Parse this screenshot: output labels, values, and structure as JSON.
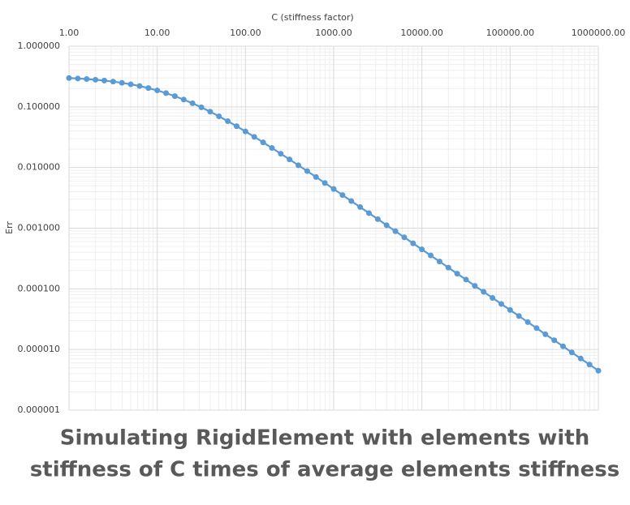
{
  "chart_data": {
    "type": "line",
    "title": [
      "Simulating RigidElement with elements with",
      "stiffness of C times of average elements stiffness"
    ],
    "x_label": "C (stiffness factor)",
    "y_label": "Err",
    "x": [
      1,
      1.259,
      1.585,
      1.995,
      2.512,
      3.162,
      3.981,
      5.012,
      6.31,
      7.943,
      10,
      12.59,
      15.85,
      19.95,
      25.12,
      31.62,
      39.81,
      50.12,
      63.1,
      79.43,
      100,
      125.9,
      158.5,
      199.5,
      251.2,
      316.2,
      398.1,
      501.2,
      631,
      794.3,
      1000,
      1259,
      1585,
      1995,
      2512,
      3162,
      3981,
      5012,
      6310,
      7943,
      10000,
      12589,
      15849,
      19953,
      25119,
      31623,
      39811,
      50119,
      63096,
      79433,
      100000,
      125893,
      158489,
      199526,
      251189,
      316228,
      398107,
      501187,
      630957,
      794328,
      1000000
    ],
    "series": [
      {
        "name": "Err",
        "color": "#5b9bd5",
        "values": [
          0.2987,
          0.2936,
          0.2875,
          0.2801,
          0.2713,
          0.261,
          0.2491,
          0.2356,
          0.2206,
          0.2042,
          0.1867,
          0.1685,
          0.1501,
          0.1319,
          0.1146,
          0.0984,
          0.0833,
          0.0699,
          0.0581,
          0.048,
          0.0393,
          0.032,
          0.026,
          0.021,
          0.0169,
          0.0136,
          0.0109,
          0.00873,
          0.00697,
          0.00556,
          0.00443,
          0.00352,
          0.0028,
          0.00223,
          0.00177,
          0.00141,
          0.00112,
          0.000891,
          0.000708,
          0.000563,
          0.000447,
          0.000355,
          0.000282,
          0.000224,
          0.000178,
          0.000142,
          0.000112,
          8.93e-05,
          7.1e-05,
          5.64e-05,
          4.48e-05,
          3.56e-05,
          2.83e-05,
          2.25e-05,
          1.78e-05,
          1.42e-05,
          1.13e-05,
          8.94e-06,
          7.1e-06,
          5.64e-06,
          4.48e-06
        ]
      }
    ],
    "x_log": true,
    "y_log": true,
    "x_axis_position": "top",
    "grid": true,
    "minor_grid": true,
    "xlim": [
      1,
      1000000
    ],
    "ylim": [
      1e-06,
      1
    ],
    "xticks": [
      {
        "value": 1,
        "label": "1.00"
      },
      {
        "value": 10,
        "label": "10.00"
      },
      {
        "value": 100,
        "label": "100.00"
      },
      {
        "value": 1000,
        "label": "1000.00"
      },
      {
        "value": 10000,
        "label": "10000.00"
      },
      {
        "value": 100000,
        "label": "100000.00"
      },
      {
        "value": 1000000,
        "label": "1000000.00"
      }
    ],
    "yticks": [
      {
        "value": 1,
        "label": "1.000000"
      },
      {
        "value": 0.1,
        "label": "0.100000"
      },
      {
        "value": 0.01,
        "label": "0.010000"
      },
      {
        "value": 0.001,
        "label": "0.001000"
      },
      {
        "value": 0.0001,
        "label": "0.000100"
      },
      {
        "value": 1e-05,
        "label": "0.000010"
      },
      {
        "value": 1e-06,
        "label": "0.000001"
      }
    ]
  }
}
